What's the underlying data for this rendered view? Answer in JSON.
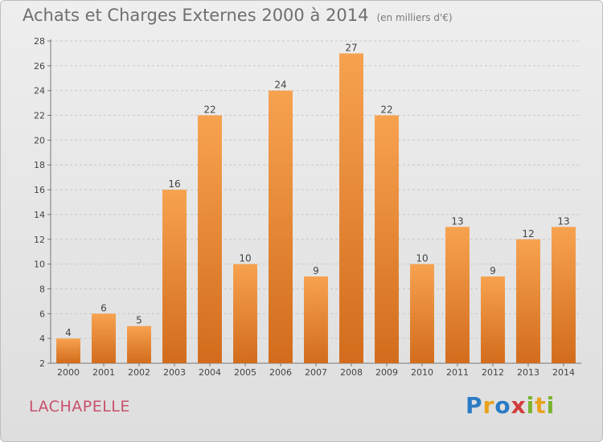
{
  "header": {
    "title": "Achats et Charges Externes 2000 à 2014",
    "subtitle": "(en milliers d'€)"
  },
  "commune": "LACHAPELLE",
  "logo": {
    "text": "Proxiti",
    "letters": [
      {
        "char": "P",
        "color": "#2b7bc4"
      },
      {
        "char": "r",
        "color": "#e8a21c"
      },
      {
        "char": "o",
        "color": "#2b7bc4"
      },
      {
        "char": "x",
        "color": "#d23b3b"
      },
      {
        "char": "i",
        "color": "#7ab32e"
      },
      {
        "char": "t",
        "color": "#e8a21c"
      },
      {
        "char": "i",
        "color": "#7ab32e"
      }
    ]
  },
  "colors": {
    "bar_top": "#f7a24f",
    "bar_bottom": "#d26c1c",
    "grid": "#c8c8c8"
  },
  "chart_data": {
    "type": "bar",
    "categories": [
      "2000",
      "2001",
      "2002",
      "2003",
      "2004",
      "2005",
      "2006",
      "2007",
      "2008",
      "2009",
      "2010",
      "2011",
      "2012",
      "2013",
      "2014"
    ],
    "values": [
      4,
      6,
      5,
      16,
      22,
      10,
      24,
      9,
      27,
      22,
      10,
      13,
      9,
      12,
      13
    ],
    "title": "Achats et Charges Externes 2000 à 2014",
    "subtitle": "(en milliers d'€)",
    "xlabel": "",
    "ylabel": "",
    "ylim": [
      2,
      28
    ],
    "yticks": [
      2,
      4,
      6,
      8,
      10,
      12,
      14,
      16,
      18,
      20,
      22,
      24,
      26,
      28
    ],
    "grid": true,
    "legend": "none"
  }
}
